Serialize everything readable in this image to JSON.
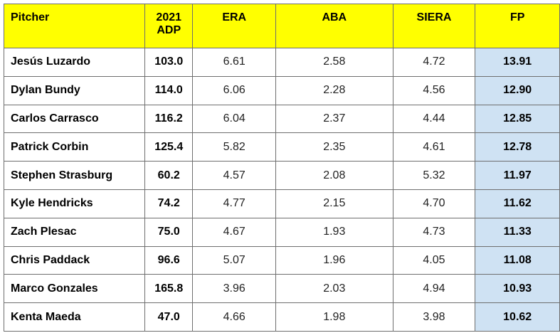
{
  "table": {
    "headers": {
      "pitcher": "Pitcher",
      "adp_line1": "2021",
      "adp_line2": "ADP",
      "era": "ERA",
      "aba": "ABA",
      "siera": "SIERA",
      "fp": "FP"
    },
    "rows": [
      {
        "pitcher": "Jesús Luzardo",
        "adp": "103.0",
        "era": "6.61",
        "aba": "2.58",
        "siera": "4.72",
        "fp": "13.91"
      },
      {
        "pitcher": "Dylan Bundy",
        "adp": "114.0",
        "era": "6.06",
        "aba": "2.28",
        "siera": "4.56",
        "fp": "12.90"
      },
      {
        "pitcher": "Carlos Carrasco",
        "adp": "116.2",
        "era": "6.04",
        "aba": "2.37",
        "siera": "4.44",
        "fp": "12.85"
      },
      {
        "pitcher": "Patrick Corbin",
        "adp": "125.4",
        "era": "5.82",
        "aba": "2.35",
        "siera": "4.61",
        "fp": "12.78"
      },
      {
        "pitcher": "Stephen Strasburg",
        "adp": "60.2",
        "era": "4.57",
        "aba": "2.08",
        "siera": "5.32",
        "fp": "11.97"
      },
      {
        "pitcher": "Kyle Hendricks",
        "adp": "74.2",
        "era": "4.77",
        "aba": "2.15",
        "siera": "4.70",
        "fp": "11.62"
      },
      {
        "pitcher": "Zach Plesac",
        "adp": "75.0",
        "era": "4.67",
        "aba": "1.93",
        "siera": "4.73",
        "fp": "11.33"
      },
      {
        "pitcher": "Chris Paddack",
        "adp": "96.6",
        "era": "5.07",
        "aba": "1.96",
        "siera": "4.05",
        "fp": "11.08"
      },
      {
        "pitcher": "Marco Gonzales",
        "adp": "165.8",
        "era": "3.96",
        "aba": "2.03",
        "siera": "4.94",
        "fp": "10.93"
      },
      {
        "pitcher": "Kenta Maeda",
        "adp": "47.0",
        "era": "4.66",
        "aba": "1.98",
        "siera": "3.98",
        "fp": "10.62"
      }
    ]
  },
  "colors": {
    "header_bg": "#ffff00",
    "fp_bg": "#cfe2f3",
    "border": "#6e6e6e"
  }
}
